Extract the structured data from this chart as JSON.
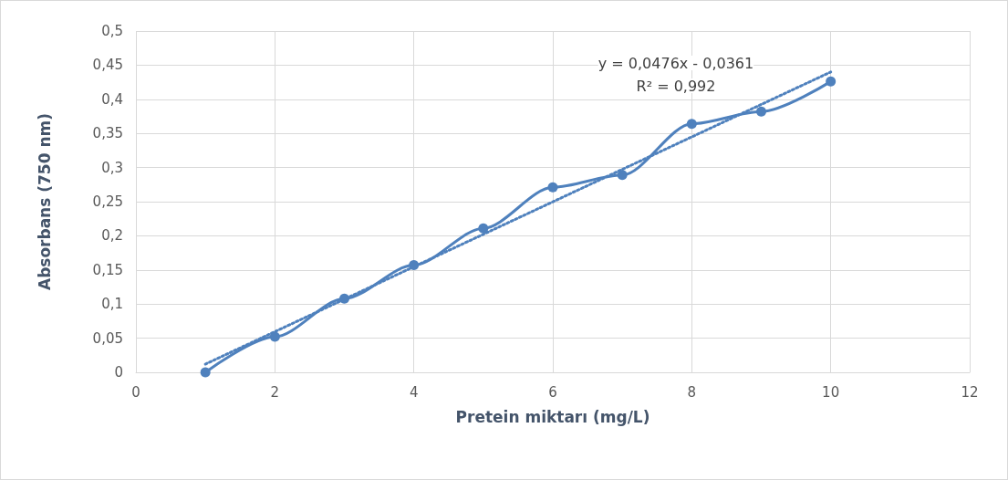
{
  "chart_data": {
    "type": "line",
    "xlabel": "Pretein miktarı (mg/L)",
    "ylabel": "Absorbans (750 nm)",
    "annotations": [
      "y = 0,0476x - 0,0361",
      "R² = 0,992"
    ],
    "x": [
      1,
      2,
      3,
      4,
      5,
      6,
      7,
      8,
      9,
      10
    ],
    "series": [
      {
        "color": "#4f81bd",
        "values": [
          0,
          0.052,
          0.108,
          0.157,
          0.211,
          0.271,
          0.289,
          0.364,
          0.382,
          0.426
        ],
        "marker": "circle",
        "line_style": "solid"
      },
      {
        "type": "line",
        "color": "#4f81bd",
        "x": [
          1,
          10
        ],
        "values": [
          0.012,
          0.44
        ],
        "marker": "none",
        "line_style": "dotted"
      }
    ],
    "xlim": [
      0,
      12
    ],
    "xticks": [
      0,
      2,
      4,
      6,
      8,
      10,
      12
    ],
    "ylim": [
      0,
      0.5
    ],
    "yticks": [
      0,
      {
        "value": 0.05,
        "label": "0,05"
      },
      {
        "value": 0.1,
        "label": "0,1"
      },
      {
        "value": 0.15,
        "label": "0,15"
      },
      {
        "value": 0.2,
        "label": "0,2"
      },
      {
        "value": 0.25,
        "label": "0,25"
      },
      {
        "value": 0.3,
        "label": "0,3"
      },
      {
        "value": 0.35,
        "label": "0,35"
      },
      {
        "value": 0.4,
        "label": "0,4"
      },
      {
        "value": 0.45,
        "label": "0,45"
      },
      {
        "value": 0.5,
        "label": "0,5"
      }
    ],
    "grid": true
  }
}
